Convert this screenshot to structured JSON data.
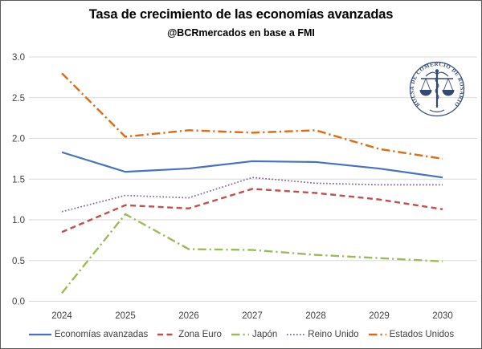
{
  "chart_data": {
    "type": "line",
    "title": "Tasa de crecimiento de las economías avanzadas",
    "subtitle": "@BCRmercados en base a FMI",
    "categories": [
      "2024",
      "2025",
      "2026",
      "2027",
      "2028",
      "2029",
      "2030"
    ],
    "xlabel": "",
    "ylabel": "",
    "ylim": [
      0.0,
      3.0
    ],
    "ytick_step": 0.5,
    "yticks": [
      "0.0",
      "0.5",
      "1.0",
      "1.5",
      "2.0",
      "2.5",
      "3.0"
    ],
    "grid": true,
    "legend_position": "bottom",
    "series": [
      {
        "name": "Economías avanzadas",
        "color": "#4472C4",
        "style": "solid",
        "values": [
          1.83,
          1.59,
          1.63,
          1.72,
          1.71,
          1.63,
          1.52
        ]
      },
      {
        "name": "Zona Euro",
        "color": "#C0504D",
        "style": "dashed",
        "values": [
          0.85,
          1.18,
          1.14,
          1.38,
          1.33,
          1.25,
          1.13
        ]
      },
      {
        "name": "Japón",
        "color": "#9BBB59",
        "style": "dashdot",
        "values": [
          0.1,
          1.07,
          0.64,
          0.63,
          0.57,
          0.53,
          0.49
        ]
      },
      {
        "name": "Reino Unido",
        "color": "#7E62A1",
        "style": "dotted",
        "values": [
          1.1,
          1.3,
          1.27,
          1.52,
          1.45,
          1.43,
          1.43
        ]
      },
      {
        "name": "Estados Unidos",
        "color": "#E2690D",
        "style": "dashdot",
        "values": [
          2.8,
          2.02,
          2.1,
          2.07,
          2.1,
          1.87,
          1.75
        ]
      }
    ],
    "logo": {
      "text": "BOLSA DE COMERCIO DE ROSARIO",
      "color": "#344A72"
    }
  }
}
